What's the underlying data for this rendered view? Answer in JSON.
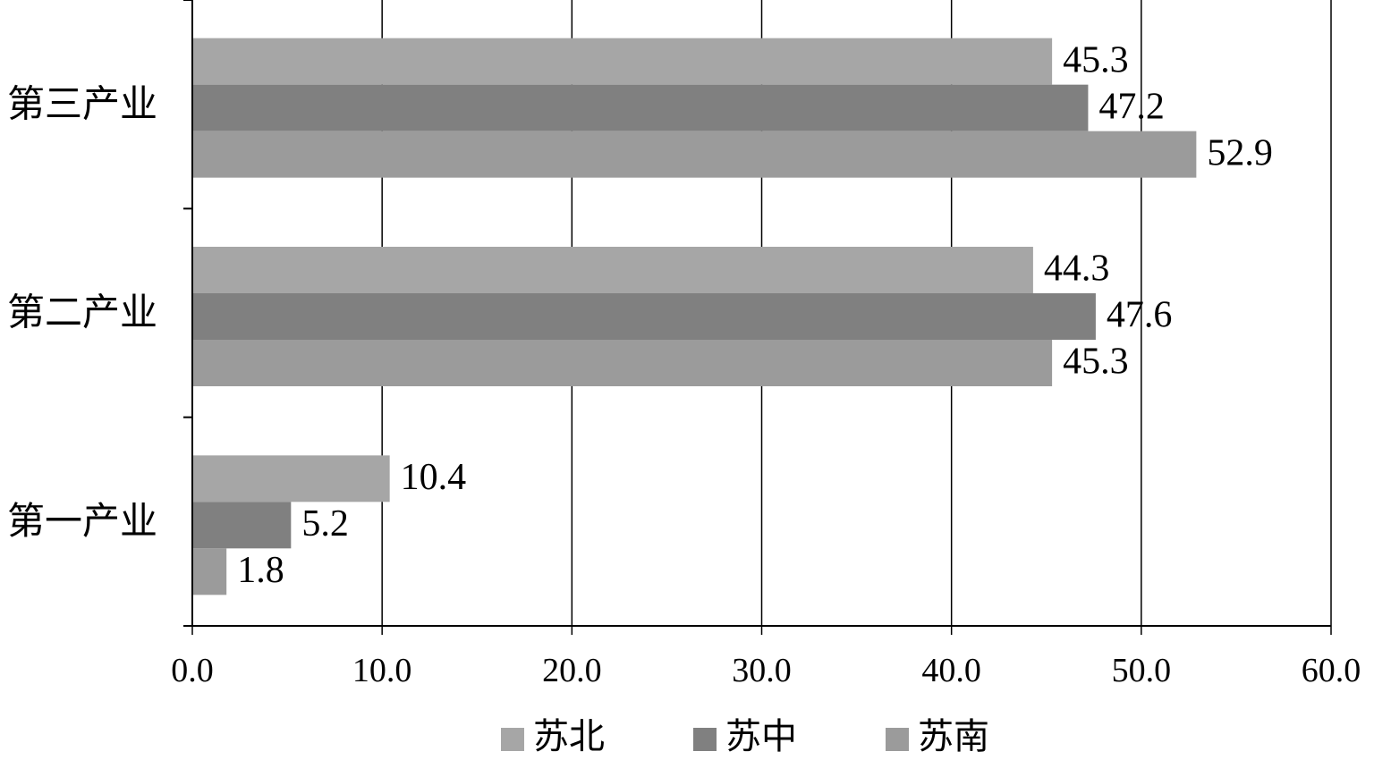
{
  "chart_data": {
    "type": "bar",
    "orientation": "horizontal",
    "categories": [
      "第三产业",
      "第二产业",
      "第一产业"
    ],
    "series": [
      {
        "name": "苏北",
        "color": "#a6a6a6",
        "values": [
          45.3,
          44.3,
          10.4
        ]
      },
      {
        "name": "苏中",
        "color": "#808080",
        "values": [
          47.2,
          47.6,
          5.2
        ]
      },
      {
        "name": "苏南",
        "color": "#9b9b9b",
        "values": [
          52.9,
          45.3,
          1.8
        ]
      }
    ],
    "xlim": [
      0,
      60
    ],
    "x_ticks": [
      "0.0",
      "10.0",
      "20.0",
      "30.0",
      "40.0",
      "50.0",
      "60.0"
    ],
    "grid": "vertical",
    "legend_position": "bottom",
    "title": "",
    "xlabel": "",
    "ylabel": ""
  }
}
